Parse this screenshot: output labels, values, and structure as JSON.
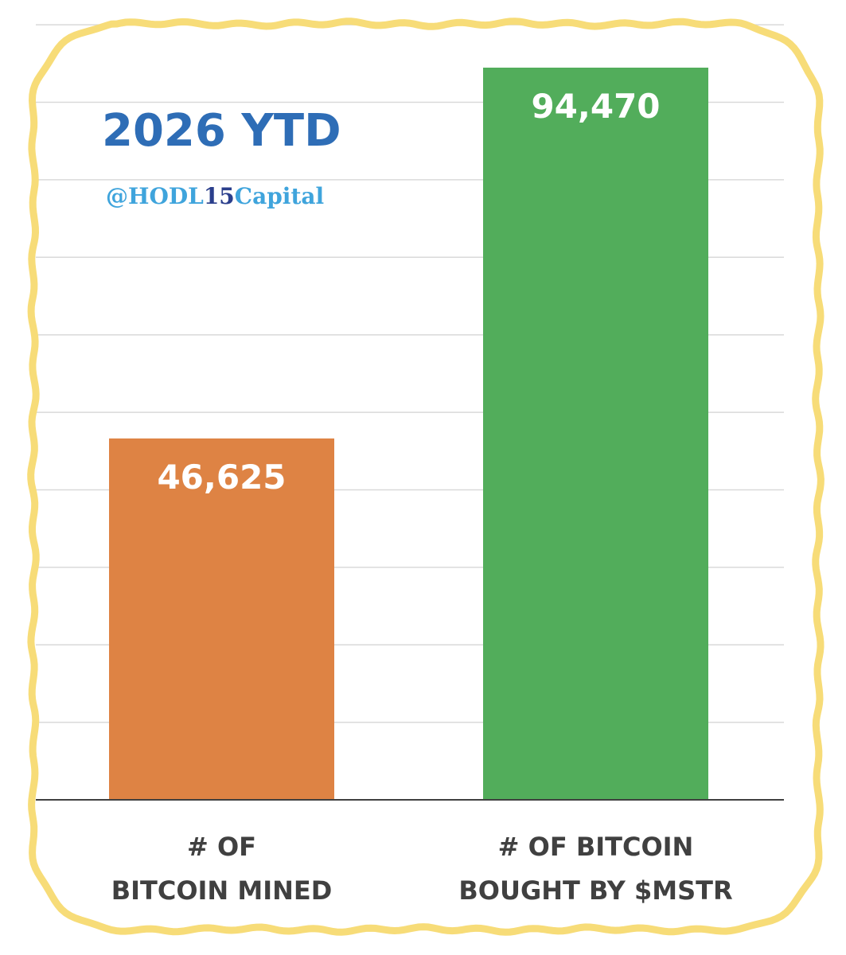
{
  "chart_data": {
    "type": "bar",
    "title": "2026 YTD",
    "subtitle": "@HODL15Capital",
    "categories": [
      [
        "# OF",
        "BITCOIN MINED"
      ],
      [
        "# OF BITCOIN",
        "BOUGHT BY $MSTR"
      ]
    ],
    "values": [
      46625,
      94470
    ],
    "value_labels": [
      "46,625",
      "94,470"
    ],
    "ylim": [
      0,
      100000
    ],
    "grid": true,
    "xlabel": "",
    "ylabel": ""
  },
  "colors": {
    "bars": [
      "#DE8344",
      "#52AD5B"
    ],
    "title": "#2E6DB6",
    "handle": "#3FA4DC",
    "handle_digits": "#2B3F8C",
    "frame": "#F7DC78",
    "grid": "#D9D9D9",
    "axis": "#404040",
    "category_text": "#404040",
    "value_text": "#FFFFFF"
  }
}
